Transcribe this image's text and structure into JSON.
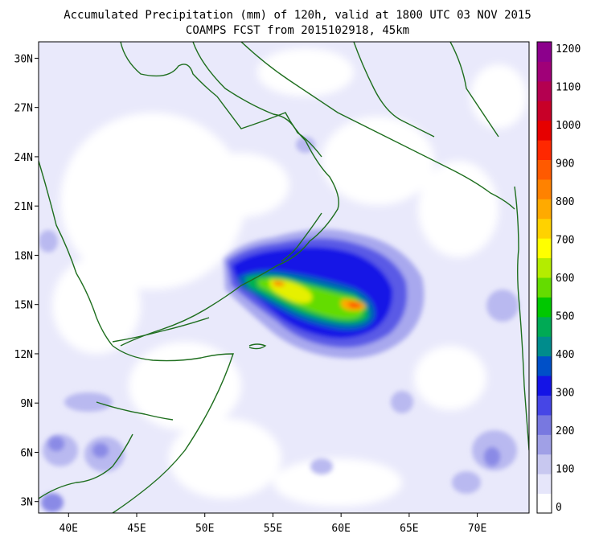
{
  "title": {
    "line1": "Accumulated Precipitation (mm) of 120h, valid at 1800 UTC 03 NOV 2015",
    "line2": "COAMPS FCST from 2015102918, 45km"
  },
  "axes": {
    "lat_labels": [
      "30N",
      "27N",
      "24N",
      "21N",
      "18N",
      "15N",
      "12N",
      "9N",
      "6N",
      "3N"
    ],
    "lon_labels": [
      "40E",
      "45E",
      "50E",
      "55E",
      "60E",
      "65E",
      "70E"
    ],
    "lat_range": [
      2.3,
      31.0
    ],
    "lon_range": [
      37.8,
      73.8
    ]
  },
  "colorbar": {
    "labels": [
      "1200",
      "1100",
      "1000",
      "900",
      "800",
      "700",
      "600",
      "500",
      "400",
      "300",
      "200",
      "100",
      "0"
    ],
    "colors": [
      "#ffffff",
      "#e6e6fa",
      "#c8c8f0",
      "#a0a0e6",
      "#7878e0",
      "#4646e6",
      "#1414e6",
      "#0050c8",
      "#008c8c",
      "#00aa55",
      "#00c800",
      "#64dc00",
      "#b4ec00",
      "#ffff00",
      "#ffd200",
      "#ffaa00",
      "#ff8200",
      "#ff5a00",
      "#ff2800",
      "#e60000",
      "#c80028",
      "#b40050",
      "#a00078",
      "#8c008c"
    ]
  },
  "colors": {
    "coastline": "#1e6e1e",
    "background_low": "#e6e6fa"
  }
}
